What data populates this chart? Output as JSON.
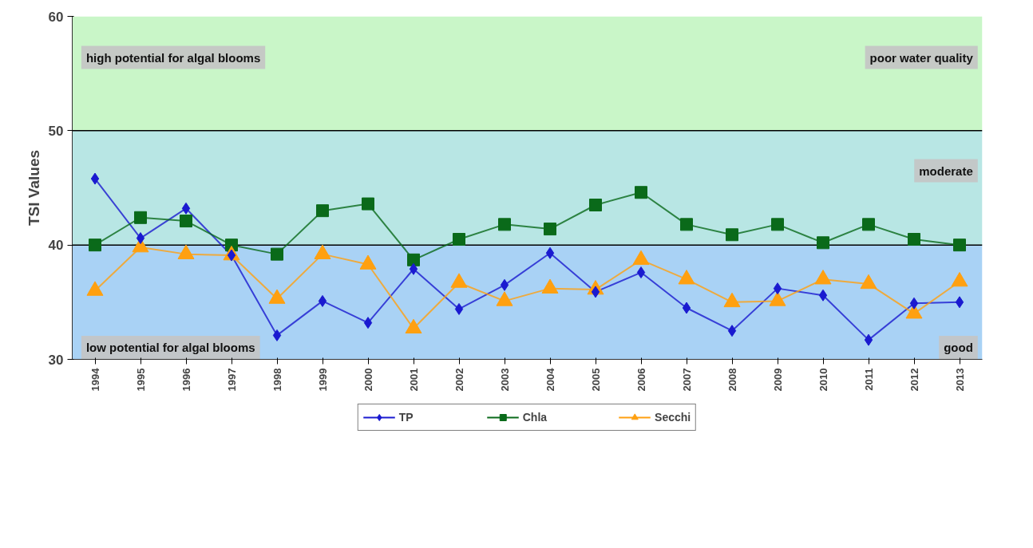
{
  "chart_data": {
    "type": "line",
    "ylabel": "TSI Values",
    "categories": [
      "1994",
      "1995",
      "1996",
      "1997",
      "1998",
      "1999",
      "2000",
      "2001",
      "2002",
      "2003",
      "2004",
      "2005",
      "2006",
      "2007",
      "2008",
      "2009",
      "2010",
      "2011",
      "2012",
      "2013"
    ],
    "series": [
      {
        "name": "TP",
        "color": "#1a1ad0",
        "marker": "diamond",
        "values": [
          45.8,
          40.6,
          43.2,
          39.1,
          32.1,
          35.1,
          33.2,
          37.9,
          34.4,
          36.5,
          39.3,
          35.9,
          37.6,
          34.5,
          32.5,
          36.2,
          35.6,
          31.7,
          34.9,
          35.0
        ]
      },
      {
        "name": "Chla",
        "color": "#0a6a1a",
        "marker": "square",
        "values": [
          40.0,
          42.4,
          42.1,
          40.0,
          39.2,
          43.0,
          43.6,
          38.7,
          40.5,
          41.8,
          41.4,
          43.5,
          44.6,
          41.8,
          40.9,
          41.8,
          40.2,
          41.8,
          40.5,
          40.0
        ]
      },
      {
        "name": "Secchi",
        "color": "#ffa010",
        "marker": "triangle",
        "values": [
          36.0,
          39.8,
          39.2,
          39.1,
          35.3,
          39.2,
          38.3,
          32.7,
          36.7,
          35.1,
          36.2,
          36.1,
          38.7,
          37.0,
          35.0,
          35.1,
          37.0,
          36.6,
          34.0,
          36.8
        ]
      }
    ],
    "ylim": [
      30,
      60
    ],
    "yticks": [
      30,
      40,
      50,
      60
    ],
    "grid": false,
    "legend": "bottom",
    "line_style": "solid",
    "ref_lines": [
      {
        "axis": "y",
        "value": 40,
        "color": "#000000"
      },
      {
        "axis": "y",
        "value": 50,
        "color": "#000000"
      }
    ],
    "bands": [
      {
        "axis": "y",
        "from": 30,
        "to": 40,
        "color": "#a9d2f5"
      },
      {
        "axis": "y",
        "from": 40,
        "to": 50,
        "color": "#b8e6e4"
      },
      {
        "axis": "y",
        "from": 50,
        "to": 60,
        "color": "#c9f6c8"
      }
    ],
    "annotations": [
      "high potential for algal blooms",
      "poor water quality",
      "moderate",
      "low potential for algal blooms",
      "good"
    ]
  }
}
